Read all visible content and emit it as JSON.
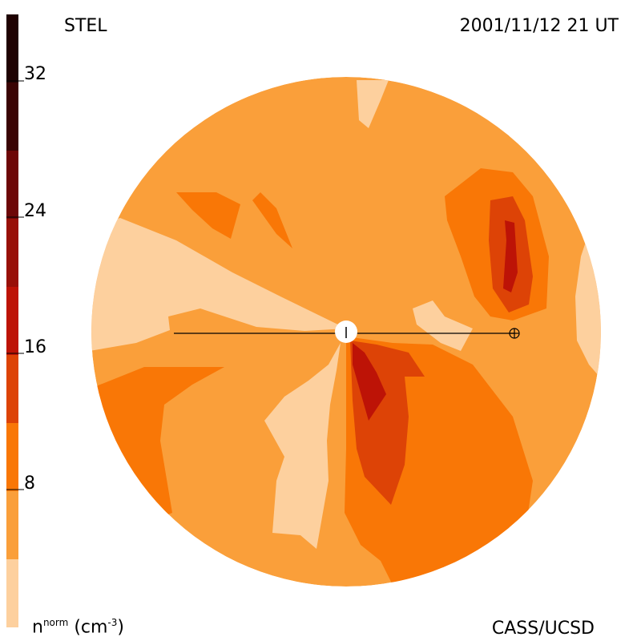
{
  "header": {
    "station": "STEL",
    "datetime": "2001/11/12 21 UT",
    "credit": "CASS/UCSD"
  },
  "colorbar": {
    "label_main": "n",
    "label_sup": "norm",
    "label_unit": "(cm",
    "label_unit_sup": "-3",
    "label_close": ")",
    "ticks": [
      "32",
      "24",
      "16",
      "8"
    ],
    "colors": [
      "#fdd09e",
      "#fa9f3a",
      "#f97706",
      "#dd4306",
      "#bd1306",
      "#981008",
      "#6d0707",
      "#3a0404",
      "#1f0202"
    ]
  },
  "map": {
    "background_color": "#fa9f3a",
    "markers": [
      "sun-marker",
      "earth-marker"
    ]
  }
}
